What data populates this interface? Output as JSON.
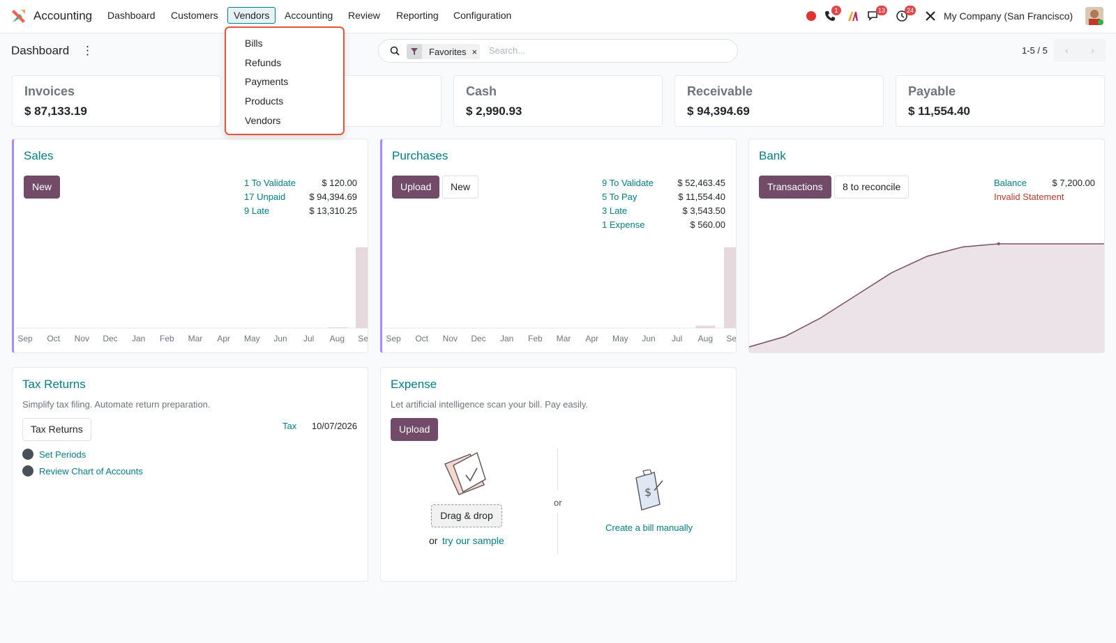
{
  "nav": {
    "app_name": "Accounting",
    "menus": [
      "Dashboard",
      "Customers",
      "Vendors",
      "Accounting",
      "Review",
      "Reporting",
      "Configuration"
    ],
    "badges": {
      "phone": "1",
      "messages": "13",
      "activities": "24"
    },
    "company": "My Company (San Francisco)"
  },
  "vendors_menu": {
    "items": [
      "Bills",
      "Refunds",
      "Payments",
      "Products",
      "Vendors"
    ]
  },
  "control": {
    "title": "Dashboard",
    "kebab": "⋮",
    "facet": "Favorites",
    "facet_remove": "×",
    "search_placeholder": "Search...",
    "pager": "1-5 / 5",
    "prev": "‹",
    "next": "›"
  },
  "kpis": [
    {
      "label": "Invoices",
      "value": "$ 87,133.19"
    },
    {
      "label": "Cash",
      "value": "$ 2,990.93"
    },
    {
      "label": "Receivable",
      "value": "$ 94,394.69"
    },
    {
      "label": "Payable",
      "value": "$ 11,554.40"
    }
  ],
  "sales": {
    "title": "Sales",
    "new_label": "New",
    "stats": [
      {
        "label": "1 To Validate",
        "value": "$ 120.00"
      },
      {
        "label": "17 Unpaid",
        "value": "$ 94,394.69"
      },
      {
        "label": "9 Late",
        "value": "$ 13,310.25"
      }
    ]
  },
  "purchases": {
    "title": "Purchases",
    "upload_label": "Upload",
    "new_label": "New",
    "stats": [
      {
        "label": "9 To Validate",
        "value": "$ 52,463.45"
      },
      {
        "label": "5 To Pay",
        "value": "$ 11,554.40"
      },
      {
        "label": "3 Late",
        "value": "$ 3,543.50"
      },
      {
        "label": "1 Expense",
        "value": "$ 560.00"
      }
    ]
  },
  "bank": {
    "title": "Bank",
    "transactions_label": "Transactions",
    "reconcile_label": "8 to reconcile",
    "balance_label": "Balance",
    "balance_value": "$ 7,200.00",
    "invalid_label": "Invalid Statement"
  },
  "tax": {
    "title": "Tax Returns",
    "subtitle": "Simplify tax filing. Automate return preparation.",
    "button_label": "Tax Returns",
    "tax_label": "Tax",
    "tax_date": "10/07/2026",
    "steps": [
      "Set Periods",
      "Review Chart of Accounts"
    ]
  },
  "expense": {
    "title": "Expense",
    "subtitle": "Let artificial intelligence scan your bill. Pay easily.",
    "upload_label": "Upload",
    "drag_label": "Drag & drop",
    "or_label": "or",
    "sample_prefix": "or",
    "sample_link": "try our sample",
    "manual_link": "Create a bill manually"
  },
  "chart_data": [
    {
      "type": "bar",
      "categories": [
        "Sep",
        "Oct",
        "Nov",
        "Dec",
        "Jan",
        "Feb",
        "Mar",
        "Apr",
        "May",
        "Jun",
        "Jul",
        "Aug",
        "Sep"
      ],
      "values": [
        0,
        0,
        0,
        0,
        0,
        0,
        0,
        0,
        0,
        0,
        0,
        1,
        100
      ],
      "title": "",
      "xlabel": "",
      "ylabel": "",
      "color": "#e5d9dd"
    },
    {
      "type": "bar",
      "categories": [
        "Sep",
        "Oct",
        "Nov",
        "Dec",
        "Jan",
        "Feb",
        "Mar",
        "Apr",
        "May",
        "Jun",
        "Jul",
        "Aug",
        "Sep"
      ],
      "values": [
        0,
        0,
        0,
        0,
        0,
        0,
        0,
        0,
        0,
        0,
        0,
        3,
        100
      ],
      "title": "",
      "xlabel": "",
      "ylabel": "",
      "color": "#e5d9dd"
    },
    {
      "type": "area",
      "x": [
        0,
        1,
        2,
        3,
        4,
        5,
        6,
        7,
        8,
        9,
        10
      ],
      "values": [
        0,
        10,
        28,
        50,
        72,
        88,
        97,
        100,
        100,
        100,
        100
      ],
      "title": "",
      "xlabel": "",
      "ylabel": "",
      "color": "#7c5569"
    }
  ],
  "colors": {
    "primary": "#714b67",
    "link": "#017e84",
    "danger": "#c0392b",
    "dropdown_highlight": "#e2553a"
  }
}
